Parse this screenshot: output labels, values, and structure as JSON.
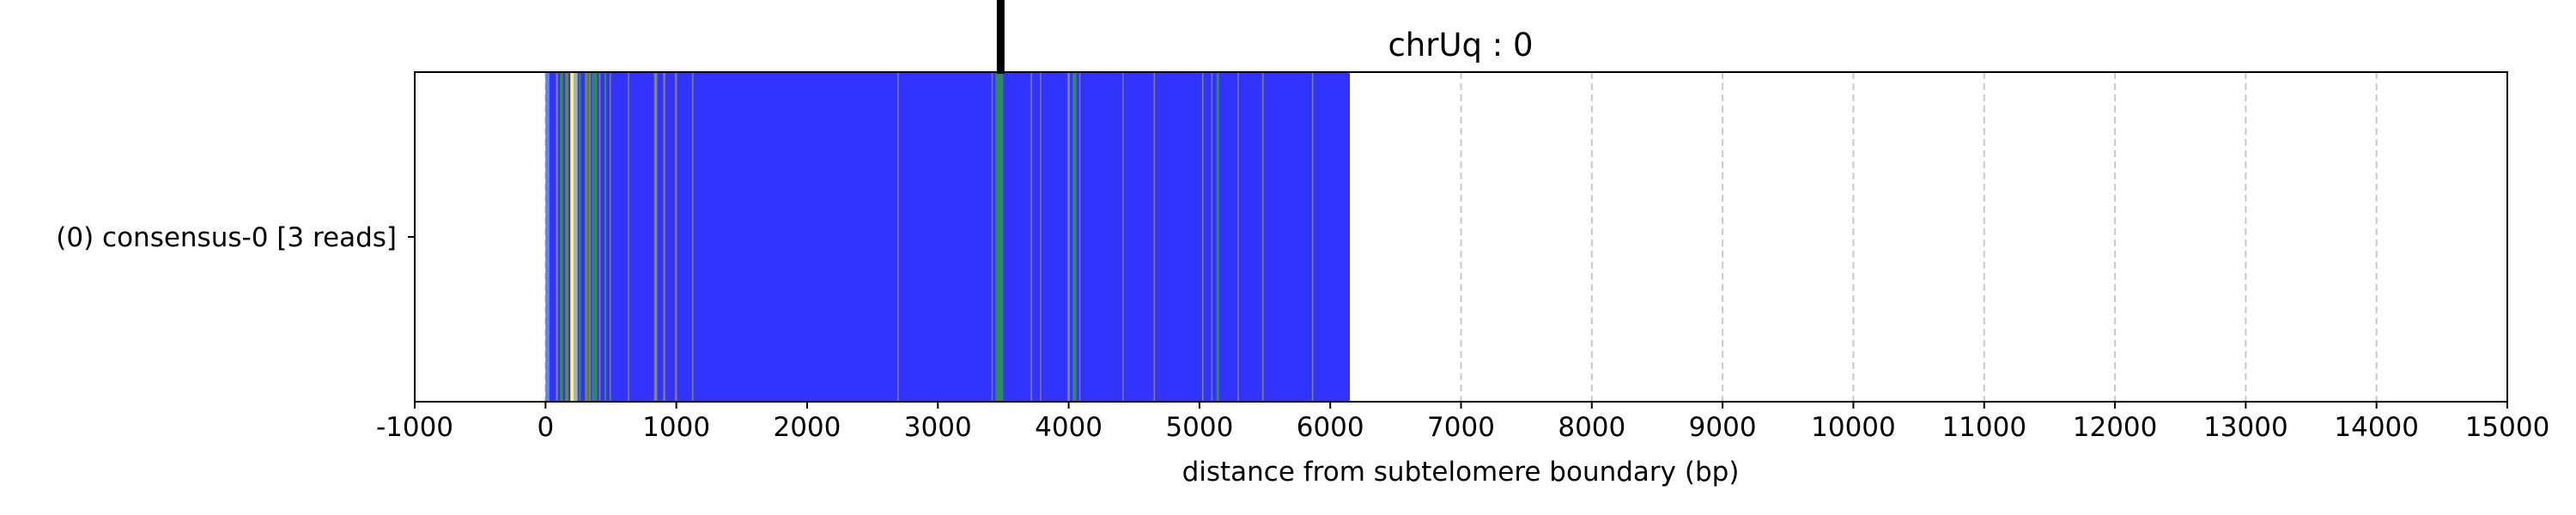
{
  "chart_data": {
    "type": "bar",
    "title": "chrUq : 0",
    "xlabel": "distance from subtelomere boundary (bp)",
    "ylabel": "",
    "xlim": [
      -1000,
      15000
    ],
    "xticks": [
      "-1000",
      "0",
      "1000",
      "2000",
      "3000",
      "4000",
      "5000",
      "6000",
      "7000",
      "8000",
      "9000",
      "10000",
      "11000",
      "12000",
      "13000",
      "14000",
      "15000"
    ],
    "grid": "x",
    "categories": [
      "(0) consensus-0 [3 reads]"
    ],
    "read": {
      "start": 0,
      "end": 6150,
      "color": "#3333ff"
    },
    "boundary_marker_x": 3480,
    "segments": [
      {
        "start": 0,
        "end": 30,
        "color": "#5c8ae0"
      },
      {
        "start": 80,
        "end": 95,
        "color": "#808080"
      },
      {
        "start": 110,
        "end": 135,
        "color": "#2e8b57"
      },
      {
        "start": 150,
        "end": 175,
        "color": "#6b8e23"
      },
      {
        "start": 190,
        "end": 215,
        "color": "#ffff66"
      },
      {
        "start": 215,
        "end": 245,
        "color": "#b0b0b0"
      },
      {
        "start": 255,
        "end": 270,
        "color": "#2e8b57"
      },
      {
        "start": 300,
        "end": 325,
        "color": "#6b8e23"
      },
      {
        "start": 330,
        "end": 345,
        "color": "#808080"
      },
      {
        "start": 355,
        "end": 395,
        "color": "#2e8b57"
      },
      {
        "start": 410,
        "end": 420,
        "color": "#808080"
      },
      {
        "start": 450,
        "end": 465,
        "color": "#2e8b57"
      },
      {
        "start": 490,
        "end": 500,
        "color": "#808080"
      },
      {
        "start": 630,
        "end": 640,
        "color": "#808080"
      },
      {
        "start": 830,
        "end": 855,
        "color": "#808080"
      },
      {
        "start": 900,
        "end": 915,
        "color": "#808080"
      },
      {
        "start": 990,
        "end": 1005,
        "color": "#808080"
      },
      {
        "start": 1120,
        "end": 1130,
        "color": "#808080"
      },
      {
        "start": 2690,
        "end": 2700,
        "color": "#808080"
      },
      {
        "start": 3410,
        "end": 3420,
        "color": "#808080"
      },
      {
        "start": 3440,
        "end": 3500,
        "color": "#2e8b57"
      },
      {
        "start": 3710,
        "end": 3720,
        "color": "#808080"
      },
      {
        "start": 3780,
        "end": 3790,
        "color": "#808080"
      },
      {
        "start": 3990,
        "end": 4010,
        "color": "#808080"
      },
      {
        "start": 4030,
        "end": 4060,
        "color": "#2e8b57"
      },
      {
        "start": 4080,
        "end": 4090,
        "color": "#808080"
      },
      {
        "start": 4410,
        "end": 4420,
        "color": "#808080"
      },
      {
        "start": 4650,
        "end": 4660,
        "color": "#808080"
      },
      {
        "start": 5020,
        "end": 5030,
        "color": "#808080"
      },
      {
        "start": 5090,
        "end": 5100,
        "color": "#808080"
      },
      {
        "start": 5130,
        "end": 5150,
        "color": "#2e8b57"
      },
      {
        "start": 5290,
        "end": 5300,
        "color": "#808080"
      },
      {
        "start": 5480,
        "end": 5490,
        "color": "#808080"
      },
      {
        "start": 5860,
        "end": 5870,
        "color": "#808080"
      }
    ]
  }
}
